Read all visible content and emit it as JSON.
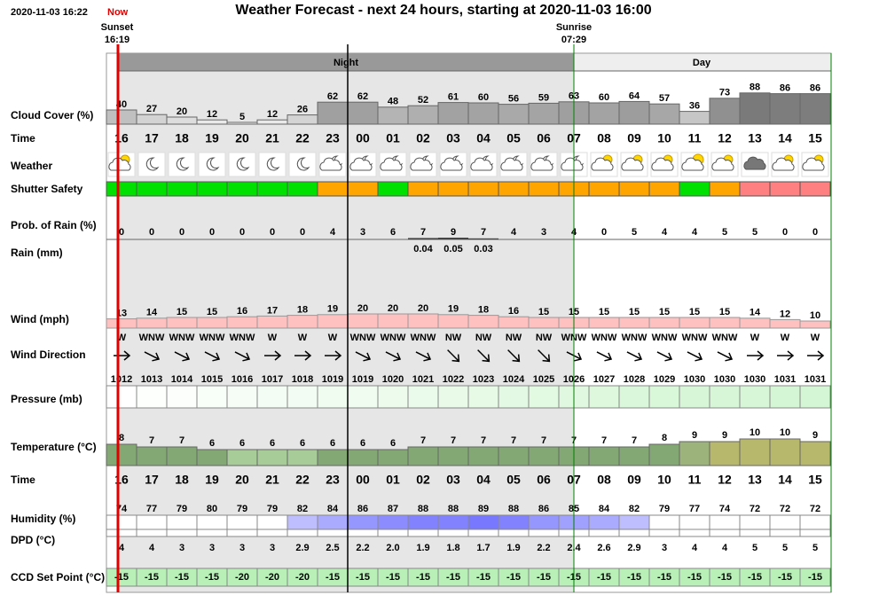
{
  "header": {
    "timestamp": "2020-11-03 16:22",
    "now": "Now",
    "title": "Weather Forecast - next 24 hours, starting at 2020-11-03 16:00"
  },
  "sunset": {
    "label": "Sunset",
    "time": "16:19"
  },
  "sunrise": {
    "label": "Sunrise",
    "time": "07:29"
  },
  "periods": [
    "Night",
    "Day"
  ],
  "time_label": "Time",
  "hours": [
    "16",
    "17",
    "18",
    "19",
    "20",
    "21",
    "22",
    "23",
    "00",
    "01",
    "02",
    "03",
    "04",
    "05",
    "06",
    "07",
    "08",
    "09",
    "10",
    "11",
    "12",
    "13",
    "14",
    "15"
  ],
  "rows": {
    "cloud_cover": {
      "label": "Cloud Cover (%)",
      "values": [
        40,
        27,
        20,
        12,
        5,
        12,
        26,
        62,
        62,
        48,
        52,
        61,
        60,
        56,
        59,
        63,
        60,
        64,
        57,
        36,
        73,
        88,
        86,
        86
      ]
    },
    "weather": {
      "label": "Weather"
    },
    "shutter_safety": {
      "label": "Shutter Safety",
      "colors": [
        "#00e000",
        "#00e000",
        "#00e000",
        "#00e000",
        "#00e000",
        "#00e000",
        "#00e000",
        "#ffa500",
        "#ffa500",
        "#00e000",
        "#ffa500",
        "#ffa500",
        "#ffa500",
        "#ffa500",
        "#ffa500",
        "#ffa500",
        "#ffa500",
        "#ffa500",
        "#ffa500",
        "#00e000",
        "#ffa500",
        "#ff8080",
        "#ff8080",
        "#ff8080"
      ]
    },
    "rain_probability": {
      "label": "Prob. of Rain (%)",
      "values": [
        0,
        0,
        0,
        0,
        0,
        0,
        0,
        4,
        3,
        6,
        7,
        9,
        7,
        4,
        3,
        4,
        0,
        5,
        4,
        4,
        5,
        5,
        0,
        0
      ]
    },
    "rain": {
      "label": "Rain (mm)",
      "values": [
        null,
        null,
        null,
        null,
        null,
        null,
        null,
        null,
        null,
        null,
        0.04,
        0.05,
        0.03,
        null,
        null,
        null,
        null,
        null,
        null,
        null,
        null,
        null,
        null,
        null
      ]
    },
    "wind": {
      "label": "Wind (mph)",
      "values": [
        13,
        14,
        15,
        15,
        16,
        17,
        18,
        19,
        20,
        20,
        20,
        19,
        18,
        16,
        15,
        15,
        15,
        15,
        15,
        15,
        15,
        14,
        12,
        10
      ]
    },
    "wind_direction": {
      "label": "Wind Direction",
      "values": [
        "W",
        "WNW",
        "WNW",
        "WNW",
        "WNW",
        "W",
        "W",
        "W",
        "WNW",
        "WNW",
        "WNW",
        "NW",
        "NW",
        "NW",
        "NW",
        "WNW",
        "WNW",
        "WNW",
        "WNW",
        "WNW",
        "WNW",
        "W",
        "W",
        "W"
      ]
    },
    "pressure": {
      "label": "Pressure (mb)",
      "values": [
        1012,
        1013,
        1014,
        1015,
        1016,
        1017,
        1018,
        1019,
        1019,
        1020,
        1021,
        1022,
        1023,
        1024,
        1025,
        1026,
        1027,
        1028,
        1029,
        1030,
        1030,
        1030,
        1031,
        1031
      ]
    },
    "temperature": {
      "label": "Temperature (°C)",
      "values": [
        8,
        7,
        7,
        6,
        6,
        6,
        6,
        6,
        6,
        6,
        7,
        7,
        7,
        7,
        7,
        7,
        7,
        7,
        8,
        9,
        9,
        10,
        10,
        9
      ],
      "colors": [
        "#84a874",
        "#84a874",
        "#84a874",
        "#84a874",
        "#a8cc98",
        "#a8cc98",
        "#a8cc98",
        "#84a874",
        "#84a874",
        "#84a874",
        "#84a874",
        "#84a874",
        "#84a874",
        "#84a874",
        "#84a874",
        "#84a874",
        "#84a874",
        "#84a874",
        "#84a874",
        "#9cb47c",
        "#b8b86c",
        "#b8b86c",
        "#b8b86c",
        "#b8b86c"
      ]
    },
    "humidity": {
      "label": "Humidity (%)",
      "values": [
        74,
        77,
        79,
        80,
        79,
        79,
        82,
        84,
        86,
        87,
        88,
        88,
        89,
        88,
        86,
        85,
        84,
        82,
        79,
        77,
        74,
        72,
        72,
        72
      ]
    },
    "dpd": {
      "label": "DPD (°C)",
      "values": [
        4,
        4,
        3,
        3,
        3,
        3,
        2.9,
        2.5,
        2.2,
        2.0,
        1.9,
        1.8,
        1.7,
        1.9,
        2.2,
        2.4,
        2.6,
        2.9,
        3,
        4,
        4,
        5,
        5,
        5
      ],
      "value_labels": [
        "4",
        "4",
        "3",
        "3",
        "3",
        "3",
        "2.9",
        "2.5",
        "2.2",
        "2.0",
        "1.9",
        "1.8",
        "1.7",
        "1.9",
        "2.2",
        "2.4",
        "2.6",
        "2.9",
        "3",
        "4",
        "4",
        "5",
        "5",
        "5"
      ]
    },
    "ccd_set_point": {
      "label": "CCD Set Point (°C)",
      "values": [
        -15,
        -15,
        -15,
        -15,
        -20,
        -20,
        -20,
        -15,
        -15,
        -15,
        -15,
        -15,
        -15,
        -15,
        -15,
        -15,
        -15,
        -15,
        -15,
        -15,
        -15,
        -15,
        -15,
        -15
      ]
    }
  }
}
